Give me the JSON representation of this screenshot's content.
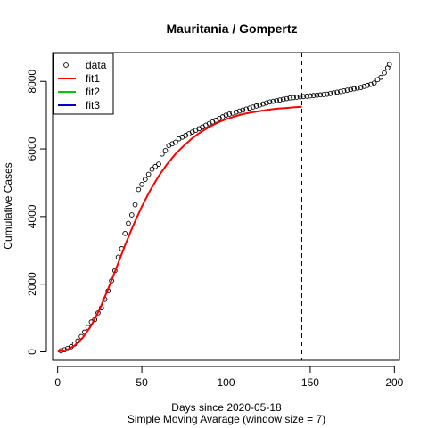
{
  "chart_data": {
    "type": "scatter",
    "title": "Mauritania / Gompertz",
    "xlabel": "Days since 2020-05-18",
    "xlabel2": "Simple Moving Avarage (window size = 7)",
    "ylabel": "Cumulative Cases",
    "xlim": [
      -3,
      203
    ],
    "ylim": [
      -250,
      8850
    ],
    "xticks": [
      0,
      50,
      100,
      150,
      200
    ],
    "yticks": [
      0,
      2000,
      4000,
      6000,
      8000
    ],
    "vline_x": 145,
    "legend": {
      "position": "top-left",
      "items": [
        {
          "label": "data",
          "kind": "point",
          "color": "#000000"
        },
        {
          "label": "fit1",
          "kind": "line",
          "color": "#ff0000"
        },
        {
          "label": "fit2",
          "kind": "line",
          "color": "#00cc00"
        },
        {
          "label": "fit3",
          "kind": "line",
          "color": "#0000cc"
        }
      ]
    },
    "data_series": {
      "name": "data",
      "x": [
        2,
        4,
        6,
        8,
        10,
        12,
        14,
        16,
        18,
        20,
        22,
        24,
        26,
        28,
        30,
        32,
        34,
        36,
        38,
        40,
        42,
        44,
        46,
        48,
        50,
        52,
        54,
        56,
        58,
        60,
        62,
        64,
        66,
        68,
        70,
        72,
        74,
        76,
        78,
        80,
        82,
        84,
        86,
        88,
        90,
        92,
        94,
        96,
        98,
        100,
        102,
        104,
        106,
        108,
        110,
        112,
        114,
        116,
        118,
        120,
        122,
        124,
        126,
        128,
        130,
        132,
        134,
        136,
        138,
        140,
        142,
        144,
        146,
        148,
        150,
        152,
        154,
        156,
        158,
        160,
        162,
        164,
        166,
        168,
        170,
        172,
        174,
        176,
        178,
        180,
        182,
        184,
        186,
        188,
        190,
        192,
        194,
        196,
        197
      ],
      "y": [
        30,
        60,
        100,
        150,
        230,
        320,
        450,
        580,
        720,
        880,
        950,
        1150,
        1300,
        1550,
        1800,
        2100,
        2400,
        2800,
        3050,
        3500,
        3800,
        4050,
        4350,
        4800,
        4950,
        5100,
        5250,
        5400,
        5480,
        5550,
        5850,
        5950,
        6100,
        6150,
        6200,
        6300,
        6350,
        6400,
        6450,
        6500,
        6550,
        6600,
        6650,
        6700,
        6750,
        6800,
        6850,
        6900,
        6950,
        7000,
        7030,
        7060,
        7090,
        7120,
        7150,
        7180,
        7210,
        7240,
        7270,
        7300,
        7330,
        7360,
        7390,
        7410,
        7430,
        7450,
        7470,
        7490,
        7510,
        7520,
        7530,
        7540,
        7550,
        7560,
        7570,
        7580,
        7590,
        7600,
        7610,
        7620,
        7640,
        7660,
        7680,
        7700,
        7720,
        7740,
        7760,
        7780,
        7800,
        7820,
        7850,
        7880,
        7910,
        7950,
        8050,
        8120,
        8250,
        8400,
        8500
      ]
    },
    "fit_series": {
      "name": "fit1",
      "x": [
        0,
        5,
        10,
        15,
        20,
        25,
        30,
        35,
        40,
        45,
        50,
        55,
        60,
        65,
        70,
        75,
        80,
        85,
        90,
        95,
        100,
        105,
        110,
        115,
        120,
        125,
        130,
        135,
        140,
        145
      ],
      "y": [
        5,
        50,
        180,
        420,
        780,
        1270,
        1860,
        2500,
        3150,
        3750,
        4300,
        4780,
        5200,
        5550,
        5850,
        6100,
        6320,
        6500,
        6650,
        6780,
        6880,
        6960,
        7030,
        7080,
        7120,
        7160,
        7190,
        7210,
        7230,
        7250
      ]
    }
  }
}
